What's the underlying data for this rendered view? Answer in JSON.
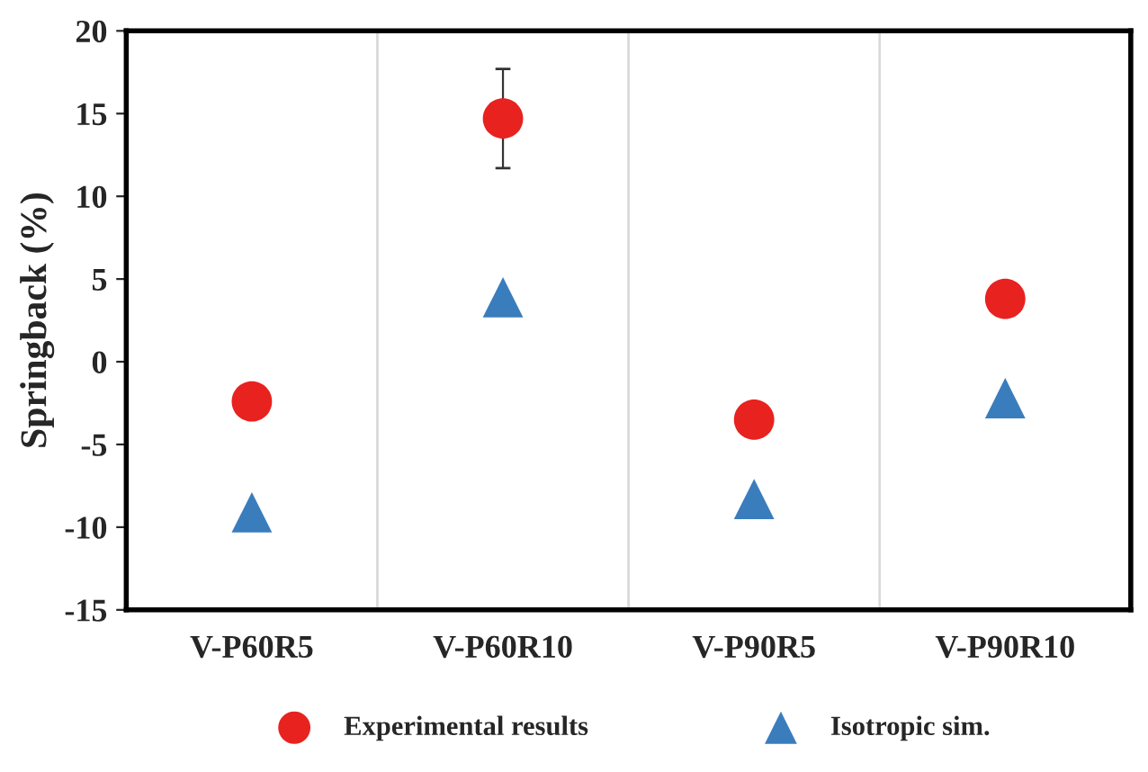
{
  "chart_data": {
    "type": "scatter",
    "ylabel": "Springback (%)",
    "categories": [
      "V-P60R5",
      "V-P60R10",
      "V-P90R5",
      "V-P90R10"
    ],
    "series": [
      {
        "name": "Experimental results",
        "color": "#e8221f",
        "marker": "circle",
        "values": [
          -2.4,
          14.7,
          -3.5,
          3.8
        ],
        "errors": [
          null,
          3,
          null,
          null
        ]
      },
      {
        "name": "Isotropic sim.",
        "color": "#3a7dbd",
        "marker": "triangle",
        "values": [
          -9.1,
          3.9,
          -8.3,
          -2.2
        ]
      }
    ],
    "ylim": [
      -15,
      20
    ],
    "yticks": [
      -15,
      -10,
      -5,
      0,
      5,
      10,
      15,
      20
    ],
    "grid": "x",
    "legend": "bottom"
  }
}
